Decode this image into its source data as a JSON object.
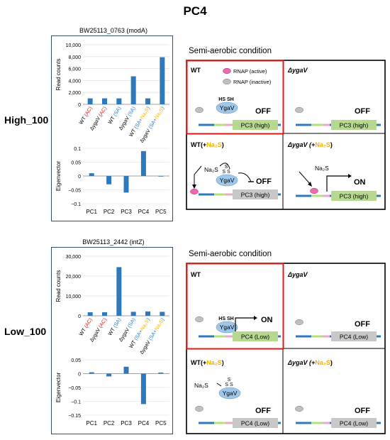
{
  "title": "PC4",
  "colors": {
    "wt": "#000000",
    "ac": "#e02020",
    "sa": "#2a7fd4",
    "na2s": "#f2b400",
    "bar": "#2e79bd",
    "pc3_box": "#b7d98f",
    "pc4_box": "#c8c8c8",
    "red_frame": "#e01919",
    "rnap_active": "#e86ab0",
    "rnap_inactive": "#c0c0c0"
  },
  "top": {
    "row_label": "High_100",
    "gene": "BW25113_0763 (modA)",
    "condition": "Semi-aerobic condition",
    "read_chart": {
      "type": "bar",
      "ylabel": "Read counts",
      "ylim": [
        0,
        10000
      ],
      "yticks": [
        "10,000",
        "8,000",
        "6,000",
        "4,000",
        "2,000",
        "0"
      ],
      "categories": [
        {
          "parts": [
            {
              "t": "WT ",
              "c": "wt"
            },
            {
              "t": "(AC)",
              "c": "ac"
            }
          ]
        },
        {
          "parts": [
            {
              "t": "ΔygaV ",
              "c": "wt"
            },
            {
              "t": "(AC)",
              "c": "ac"
            }
          ]
        },
        {
          "parts": [
            {
              "t": "WT ",
              "c": "wt"
            },
            {
              "t": "(SA)",
              "c": "sa"
            }
          ]
        },
        {
          "parts": [
            {
              "t": "ΔygaV ",
              "c": "wt"
            },
            {
              "t": "(SA)",
              "c": "sa"
            }
          ]
        },
        {
          "parts": [
            {
              "t": "WT ",
              "c": "wt"
            },
            {
              "t": "(SA+",
              "c": "sa"
            },
            {
              "t": "Na₂S",
              "c": "na2s"
            },
            {
              "t": ")",
              "c": "sa"
            }
          ]
        },
        {
          "parts": [
            {
              "t": "ΔygaV ",
              "c": "wt"
            },
            {
              "t": "(SA+",
              "c": "sa"
            },
            {
              "t": "Na₂S",
              "c": "na2s"
            },
            {
              "t": ")",
              "c": "sa"
            }
          ]
        }
      ],
      "values": [
        1000,
        1000,
        1000,
        4700,
        1000,
        7900
      ]
    },
    "eigen_chart": {
      "type": "bar",
      "ylabel": "Eigenvector",
      "ylim": [
        -0.1,
        0.1
      ],
      "yticks": [
        "0.1",
        "0.05",
        "0",
        "−0.05",
        "−0.1"
      ],
      "categories": [
        "PC1",
        "PC2",
        "PC3",
        "PC4",
        "PC5"
      ],
      "values": [
        0.01,
        -0.03,
        -0.06,
        0.09,
        0.0
      ]
    },
    "cells": {
      "wt": {
        "label": "WT",
        "state": "OFF",
        "gene_box": "PC3 (high)",
        "rnap_active": "RNAP (active)",
        "rnap_inactive": "RNAP (inactive)",
        "hs": "HS SH",
        "protein": "YgaV"
      },
      "dygav": {
        "label": "ΔygaV",
        "state": "OFF",
        "gene_box": "PC3 (high)"
      },
      "wt_na2s": {
        "label": "WT(+",
        "na2s": "Na₂S",
        "close": ")",
        "state": "OFF",
        "gene_box": "PC3 (high)",
        "reagent": "Na₂S",
        "ss": "S S",
        "protein": "YgaV"
      },
      "dygav_na2s": {
        "label": "ΔygaV (+",
        "na2s": "Na₂S",
        "close": ")",
        "state": "ON",
        "gene_box": "PC3 (high)",
        "reagent": "Na₂S"
      }
    }
  },
  "bottom": {
    "row_label": "Low_100",
    "gene": "BW25113_2442 (intZ)",
    "condition": "Semi-aerobic condition",
    "read_chart": {
      "type": "bar",
      "ylabel": "Read counts",
      "ylim": [
        0,
        30000
      ],
      "yticks": [
        "30,000",
        "20,000",
        "10,000",
        "0"
      ],
      "categories": [
        {
          "parts": [
            {
              "t": "WT ",
              "c": "wt"
            },
            {
              "t": "(AC)",
              "c": "ac"
            }
          ]
        },
        {
          "parts": [
            {
              "t": "ΔygaV ",
              "c": "wt"
            },
            {
              "t": "(AC)",
              "c": "ac"
            }
          ]
        },
        {
          "parts": [
            {
              "t": "WT ",
              "c": "wt"
            },
            {
              "t": "(SA)",
              "c": "sa"
            }
          ]
        },
        {
          "parts": [
            {
              "t": "ΔygaV ",
              "c": "wt"
            },
            {
              "t": "(SA)",
              "c": "sa"
            }
          ]
        },
        {
          "parts": [
            {
              "t": "WT ",
              "c": "wt"
            },
            {
              "t": "(SA+",
              "c": "sa"
            },
            {
              "t": "Na₂S",
              "c": "na2s"
            },
            {
              "t": ")",
              "c": "sa"
            }
          ]
        },
        {
          "parts": [
            {
              "t": "ΔygaV ",
              "c": "wt"
            },
            {
              "t": "(SA+",
              "c": "sa"
            },
            {
              "t": "Na₂S",
              "c": "na2s"
            },
            {
              "t": ")",
              "c": "sa"
            }
          ]
        }
      ],
      "values": [
        1800,
        1800,
        24500,
        2000,
        2200,
        2000
      ]
    },
    "eigen_chart": {
      "type": "bar",
      "ylabel": "Eigenvector",
      "ylim": [
        -0.15,
        0.05
      ],
      "yticks": [
        "0.05",
        "0",
        "−0.05",
        "−0.1",
        "−0.15"
      ],
      "categories": [
        "PC1",
        "PC2",
        "PC3",
        "PC4",
        "PC5"
      ],
      "values": [
        0.005,
        -0.01,
        0.025,
        -0.11,
        0.004
      ]
    },
    "cells": {
      "wt": {
        "label": "WT",
        "state": "ON",
        "gene_box": "PC4 (Low)",
        "hs": "HS SH",
        "protein": "YgaV"
      },
      "dygav": {
        "label": "ΔygaV",
        "state": "OFF",
        "gene_box": "PC4 (Low)"
      },
      "wt_na2s": {
        "label": "WT(+",
        "na2s": "Na₂S",
        "close": ")",
        "state": "OFF",
        "gene_box": "PC4 (Low)",
        "reagent": "Na₂S",
        "ss": "S S",
        "protein": "YgaV"
      },
      "dygav_na2s": {
        "label": "ΔygaV (+",
        "na2s": "Na₂S",
        "close": ")",
        "state": "OFF",
        "gene_box": "PC4 (Low)"
      }
    }
  }
}
